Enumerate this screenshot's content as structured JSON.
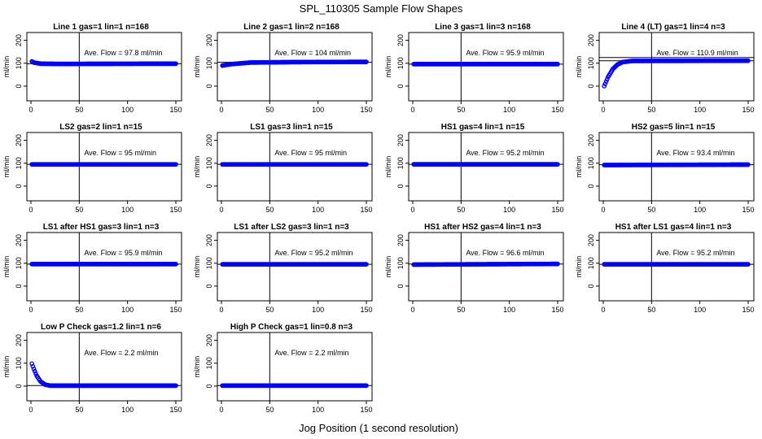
{
  "title": "SPL_110305  Sample Flow Shapes",
  "xlabel": "Jog Position (1 second resolution)",
  "ylabel": "ml/min",
  "xticks": [
    "0",
    "50",
    "100",
    "150"
  ],
  "yticks": [
    "0",
    "100",
    "200"
  ],
  "colors": {
    "points": "#0000ff",
    "lines": "#000000"
  },
  "chart_data": [
    {
      "type": "scatter",
      "title": "Line 1 gas=1 lin=1 n=168",
      "annotation": "Ave. Flow =  97.8  ml/min",
      "xlim": [
        0,
        150
      ],
      "ylim": [
        -50,
        220
      ],
      "ref_line_y": [
        97.8
      ],
      "vline_x": 50,
      "shape": "flat",
      "points": [
        [
          1,
          108
        ],
        [
          3,
          103
        ],
        [
          10,
          98
        ],
        [
          30,
          97
        ],
        [
          75,
          97.5
        ],
        [
          150,
          98
        ]
      ]
    },
    {
      "type": "scatter",
      "title": "Line 2 gas=1 lin=2 n=168",
      "annotation": "Ave. Flow =  104  ml/min",
      "xlim": [
        0,
        150
      ],
      "ylim": [
        -50,
        220
      ],
      "ref_line_y": [
        104
      ],
      "vline_x": 50,
      "shape": "flat",
      "points": [
        [
          1,
          90
        ],
        [
          10,
          96
        ],
        [
          30,
          103
        ],
        [
          75,
          105
        ],
        [
          150,
          106
        ]
      ]
    },
    {
      "type": "scatter",
      "title": "Line 3 gas=1 lin=3 n=168",
      "annotation": "Ave. Flow =  95.9  ml/min",
      "xlim": [
        0,
        150
      ],
      "ylim": [
        -50,
        220
      ],
      "ref_line_y": [
        95.9
      ],
      "vline_x": 50,
      "shape": "flat",
      "points": [
        [
          1,
          96
        ],
        [
          150,
          96
        ]
      ]
    },
    {
      "type": "scatter",
      "title": "Line 4 (LT) gas=1 lin=4 n=3",
      "annotation": "Ave. Flow =  110.9  ml/min",
      "xlim": [
        0,
        150
      ],
      "ylim": [
        -50,
        220
      ],
      "ref_line_y": [
        110.9,
        125
      ],
      "vline_x": 50,
      "shape": "rise",
      "points": [
        [
          1,
          0
        ],
        [
          5,
          40
        ],
        [
          10,
          75
        ],
        [
          15,
          95
        ],
        [
          20,
          105
        ],
        [
          30,
          110
        ],
        [
          150,
          111
        ]
      ]
    },
    {
      "type": "scatter",
      "title": "LS2 gas=2 lin=1 n=15",
      "annotation": "Ave. Flow =  95  ml/min",
      "xlim": [
        0,
        150
      ],
      "ylim": [
        -50,
        220
      ],
      "ref_line_y": [
        95
      ],
      "vline_x": 50,
      "shape": "flat",
      "points": [
        [
          1,
          95
        ],
        [
          150,
          95
        ]
      ]
    },
    {
      "type": "scatter",
      "title": "LS1 gas=3 lin=1 n=15",
      "annotation": "Ave. Flow =  95  ml/min",
      "xlim": [
        0,
        150
      ],
      "ylim": [
        -50,
        220
      ],
      "ref_line_y": [
        95
      ],
      "vline_x": 50,
      "shape": "flat",
      "points": [
        [
          1,
          95
        ],
        [
          150,
          95
        ]
      ]
    },
    {
      "type": "scatter",
      "title": "HS1 gas=4 lin=1 n=15",
      "annotation": "Ave. Flow =  95.2  ml/min",
      "xlim": [
        0,
        150
      ],
      "ylim": [
        -50,
        220
      ],
      "ref_line_y": [
        95.2
      ],
      "vline_x": 50,
      "shape": "flat",
      "points": [
        [
          1,
          95.2
        ],
        [
          150,
          95.2
        ]
      ]
    },
    {
      "type": "scatter",
      "title": "HS2 gas=5 lin=1 n=15",
      "annotation": "Ave. Flow =  93.4  ml/min",
      "xlim": [
        0,
        150
      ],
      "ylim": [
        -50,
        220
      ],
      "ref_line_y": [
        93.4
      ],
      "vline_x": 50,
      "shape": "flat",
      "points": [
        [
          1,
          92
        ],
        [
          150,
          94
        ]
      ]
    },
    {
      "type": "scatter",
      "title": "LS1 after HS1 gas=3 lin=1 n=3",
      "annotation": "Ave. Flow =  95.9  ml/min",
      "xlim": [
        0,
        150
      ],
      "ylim": [
        -50,
        220
      ],
      "ref_line_y": [
        95.9
      ],
      "vline_x": 50,
      "shape": "flat",
      "points": [
        [
          1,
          96
        ],
        [
          150,
          96
        ]
      ]
    },
    {
      "type": "scatter",
      "title": "LS1 after LS2 gas=3 lin=1 n=3",
      "annotation": "Ave. Flow =  95.2  ml/min",
      "xlim": [
        0,
        150
      ],
      "ylim": [
        -50,
        220
      ],
      "ref_line_y": [
        95.2
      ],
      "vline_x": 50,
      "shape": "flat",
      "points": [
        [
          1,
          95.2
        ],
        [
          150,
          95.2
        ]
      ]
    },
    {
      "type": "scatter",
      "title": "HS1 after HS2 gas=4 lin=1 n=3",
      "annotation": "Ave. Flow =  96.6  ml/min",
      "xlim": [
        0,
        150
      ],
      "ylim": [
        -50,
        220
      ],
      "ref_line_y": [
        96.6
      ],
      "vline_x": 50,
      "shape": "flat",
      "points": [
        [
          1,
          94
        ],
        [
          150,
          97
        ]
      ]
    },
    {
      "type": "scatter",
      "title": "HS1 after LS1 gas=4 lin=1 n=3",
      "annotation": "Ave. Flow =  95.2  ml/min",
      "xlim": [
        0,
        150
      ],
      "ylim": [
        -50,
        220
      ],
      "ref_line_y": [
        95.2
      ],
      "vline_x": 50,
      "shape": "flat",
      "points": [
        [
          1,
          95.2
        ],
        [
          150,
          95.2
        ]
      ]
    },
    {
      "type": "scatter",
      "title": "Low P Check gas=1.2 lin=1 n=6",
      "annotation": "Ave. Flow =  2.2  ml/min",
      "xlim": [
        0,
        150
      ],
      "ylim": [
        -50,
        220
      ],
      "ref_line_y": [
        2.2
      ],
      "vline_x": 50,
      "shape": "decay",
      "points": [
        [
          1,
          98
        ],
        [
          3,
          75
        ],
        [
          6,
          45
        ],
        [
          10,
          20
        ],
        [
          15,
          6
        ],
        [
          20,
          2
        ],
        [
          150,
          2
        ]
      ]
    },
    {
      "type": "scatter",
      "title": "High P Check gas=1 lin=0.8 n=3",
      "annotation": "Ave. Flow =  2.2  ml/min",
      "xlim": [
        0,
        150
      ],
      "ylim": [
        -50,
        220
      ],
      "ref_line_y": [
        2.2
      ],
      "vline_x": 50,
      "shape": "flat",
      "points": [
        [
          1,
          2.2
        ],
        [
          150,
          2.2
        ]
      ]
    }
  ]
}
